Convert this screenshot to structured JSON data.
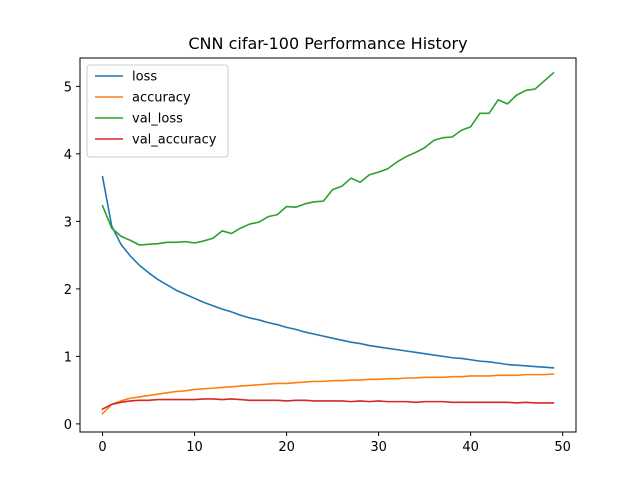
{
  "chart_data": {
    "type": "line",
    "title": "CNN cifar-100 Performance History",
    "xlabel": "",
    "ylabel": "",
    "xlim": [
      -2.45,
      51.45
    ],
    "ylim": [
      -0.12,
      5.42
    ],
    "xticks": [
      0,
      10,
      20,
      30,
      40,
      50
    ],
    "yticks": [
      0,
      1,
      2,
      3,
      4,
      5
    ],
    "grid": false,
    "legend_position": "top-left",
    "x": [
      0,
      1,
      2,
      3,
      4,
      5,
      6,
      7,
      8,
      9,
      10,
      11,
      12,
      13,
      14,
      15,
      16,
      17,
      18,
      19,
      20,
      21,
      22,
      23,
      24,
      25,
      26,
      27,
      28,
      29,
      30,
      31,
      32,
      33,
      34,
      35,
      36,
      37,
      38,
      39,
      40,
      41,
      42,
      43,
      44,
      45,
      46,
      47,
      48,
      49
    ],
    "series": [
      {
        "name": "loss",
        "color": "#1f77b4",
        "values": [
          3.66,
          2.93,
          2.66,
          2.49,
          2.35,
          2.24,
          2.14,
          2.06,
          1.98,
          1.92,
          1.86,
          1.8,
          1.75,
          1.7,
          1.66,
          1.61,
          1.57,
          1.54,
          1.5,
          1.47,
          1.43,
          1.4,
          1.36,
          1.33,
          1.3,
          1.27,
          1.24,
          1.21,
          1.19,
          1.16,
          1.14,
          1.12,
          1.1,
          1.08,
          1.06,
          1.04,
          1.02,
          1.0,
          0.98,
          0.97,
          0.95,
          0.93,
          0.92,
          0.9,
          0.88,
          0.87,
          0.86,
          0.85,
          0.84,
          0.83
        ]
      },
      {
        "name": "accuracy",
        "color": "#ff7f0e",
        "values": [
          0.15,
          0.29,
          0.34,
          0.38,
          0.4,
          0.42,
          0.44,
          0.46,
          0.48,
          0.49,
          0.51,
          0.52,
          0.53,
          0.54,
          0.55,
          0.56,
          0.57,
          0.58,
          0.59,
          0.6,
          0.6,
          0.61,
          0.62,
          0.63,
          0.63,
          0.64,
          0.64,
          0.65,
          0.65,
          0.66,
          0.66,
          0.67,
          0.67,
          0.68,
          0.68,
          0.69,
          0.69,
          0.69,
          0.7,
          0.7,
          0.71,
          0.71,
          0.71,
          0.72,
          0.72,
          0.72,
          0.73,
          0.73,
          0.73,
          0.74
        ]
      },
      {
        "name": "val_loss",
        "color": "#2ca02c",
        "values": [
          3.23,
          2.9,
          2.78,
          2.72,
          2.65,
          2.66,
          2.67,
          2.69,
          2.69,
          2.7,
          2.68,
          2.71,
          2.75,
          2.86,
          2.82,
          2.9,
          2.96,
          2.99,
          3.07,
          3.1,
          3.22,
          3.21,
          3.26,
          3.29,
          3.3,
          3.47,
          3.52,
          3.64,
          3.58,
          3.69,
          3.73,
          3.78,
          3.88,
          3.96,
          4.02,
          4.09,
          4.2,
          4.24,
          4.25,
          4.35,
          4.4,
          4.6,
          4.6,
          4.8,
          4.74,
          4.87,
          4.94,
          4.96,
          5.08,
          5.2
        ]
      },
      {
        "name": "val_accuracy",
        "color": "#d62728",
        "values": [
          0.22,
          0.29,
          0.32,
          0.34,
          0.35,
          0.35,
          0.36,
          0.36,
          0.36,
          0.36,
          0.36,
          0.37,
          0.37,
          0.36,
          0.37,
          0.36,
          0.35,
          0.35,
          0.35,
          0.35,
          0.34,
          0.35,
          0.35,
          0.34,
          0.34,
          0.34,
          0.34,
          0.33,
          0.34,
          0.33,
          0.34,
          0.33,
          0.33,
          0.33,
          0.32,
          0.33,
          0.33,
          0.33,
          0.32,
          0.32,
          0.32,
          0.32,
          0.32,
          0.32,
          0.32,
          0.31,
          0.32,
          0.31,
          0.31,
          0.31
        ]
      }
    ]
  }
}
